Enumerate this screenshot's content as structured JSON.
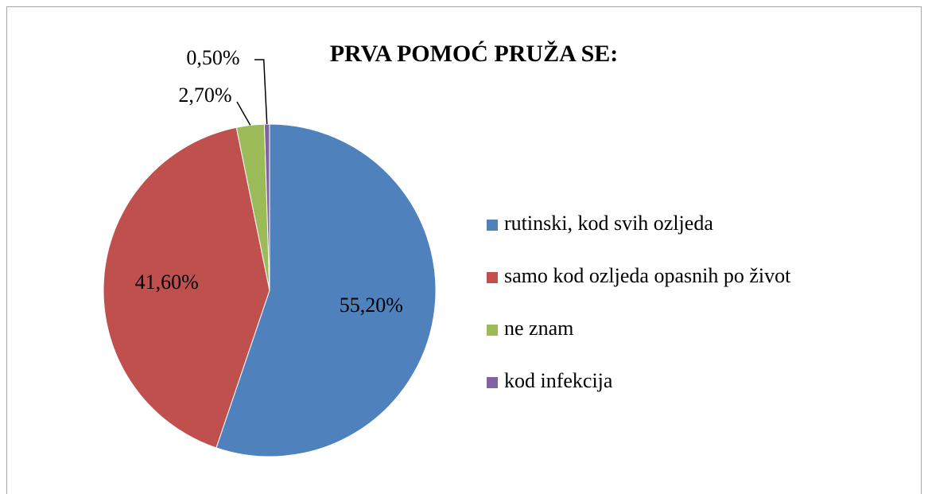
{
  "chart_data": {
    "type": "pie",
    "title": "PRVA POMOĆ PRUŽA SE:",
    "categories": [
      "rutinski, kod svih ozljeda",
      "samo kod ozljeda opasnih po život",
      "ne znam",
      "kod infekcija"
    ],
    "values": [
      55.2,
      41.6,
      2.7,
      0.5
    ],
    "value_labels": [
      "55,20%",
      "41,60%",
      "2,70%",
      "0,50%"
    ],
    "colors": [
      "#4f81bd",
      "#c0504d",
      "#9bbb59",
      "#8064a2"
    ],
    "legend": "right"
  }
}
